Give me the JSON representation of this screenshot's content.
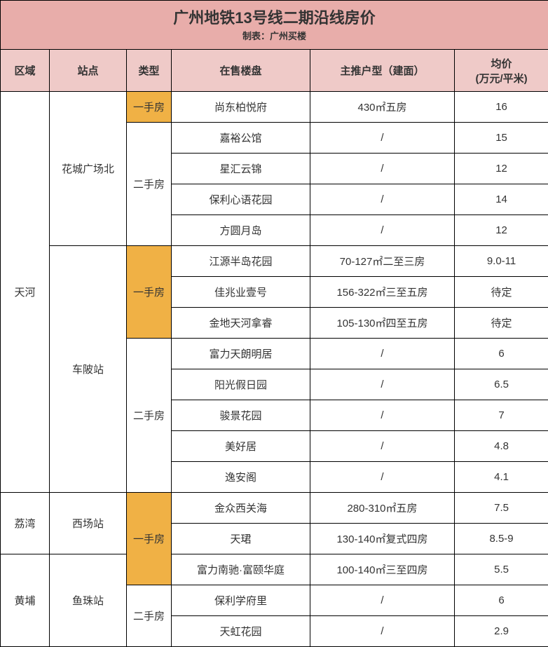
{
  "title": {
    "main": "广州地铁13号线二期沿线房价",
    "sub": "制表：广州买楼"
  },
  "headers": {
    "area": "区域",
    "station": "站点",
    "type": "类型",
    "project": "在售楼盘",
    "unit": "主推户型（建面）",
    "price": "均价\n(万元/平米)"
  },
  "colors": {
    "title_bg": "#e8adaa",
    "header_bg": "#efcac8",
    "primary_bg": "#f0b145",
    "secondary_bg": "#ffffff",
    "border": "#000000"
  },
  "type_labels": {
    "primary": "一手房",
    "secondary": "二手房"
  },
  "rows": [
    {
      "area": "天河",
      "area_rowspan": 13,
      "station": "花城广场北",
      "station_rowspan": 5,
      "type": "primary",
      "type_rowspan": 1,
      "project": "尚东柏悦府",
      "unit": "430㎡五房",
      "price": "16"
    },
    {
      "type": "secondary",
      "type_rowspan": 4,
      "project": "嘉裕公馆",
      "unit": "/",
      "price": "15"
    },
    {
      "project": "星汇云锦",
      "unit": "/",
      "price": "12"
    },
    {
      "project": "保利心语花园",
      "unit": "/",
      "price": "14"
    },
    {
      "project": "方圆月岛",
      "unit": "/",
      "price": "12"
    },
    {
      "station": "车陂站",
      "station_rowspan": 8,
      "type": "primary",
      "type_rowspan": 3,
      "project": "江源半岛花园",
      "unit": "70-127㎡二至三房",
      "price": "9.0-11"
    },
    {
      "project": "佳兆业壹号",
      "unit": "156-322㎡三至五房",
      "price": "待定"
    },
    {
      "project": "金地天河拿睿",
      "unit": "105-130㎡四至五房",
      "price": "待定"
    },
    {
      "type": "secondary",
      "type_rowspan": 5,
      "project": "富力天朗明居",
      "unit": "/",
      "price": "6"
    },
    {
      "project": "阳光假日园",
      "unit": "/",
      "price": "6.5"
    },
    {
      "project": "骏景花园",
      "unit": "/",
      "price": "7"
    },
    {
      "project": "美好居",
      "unit": "/",
      "price": "4.8"
    },
    {
      "project": "逸安阁",
      "unit": "/",
      "price": "4.1"
    },
    {
      "area": "荔湾",
      "area_rowspan": 2,
      "station": "西场站",
      "station_rowspan": 2,
      "type": "primary",
      "type_rowspan": 3,
      "project": "金众西关海",
      "unit": "280-310㎡五房",
      "price": "7.5"
    },
    {
      "project": "天珺",
      "unit": "130-140㎡复式四房",
      "price": "8.5-9"
    },
    {
      "area": "黄埔",
      "area_rowspan": 3,
      "station": "鱼珠站",
      "station_rowspan": 3,
      "project": "富力南驰·富颐华庭",
      "unit": "100-140㎡三至四房",
      "price": "5.5"
    },
    {
      "type": "secondary",
      "type_rowspan": 2,
      "project": "保利学府里",
      "unit": "/",
      "price": "6"
    },
    {
      "project": "天虹花园",
      "unit": "/",
      "price": "2.9"
    }
  ]
}
